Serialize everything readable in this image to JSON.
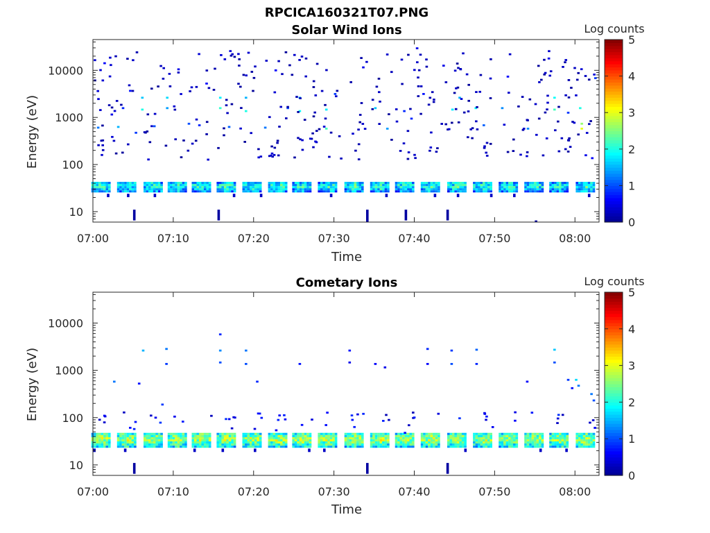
{
  "figure_title": "RPCICA160321T07.PNG",
  "colormap": [
    "#00008f",
    "#0000ff",
    "#0080ff",
    "#00ffff",
    "#80ff80",
    "#ffff00",
    "#ff8000",
    "#ff0000",
    "#800000"
  ],
  "chart_data": [
    {
      "type": "heatmap",
      "title": "Solar Wind Ions",
      "xlabel": "Time",
      "ylabel": "Energy (eV)",
      "x_tick_labels": [
        "07:00",
        "07:10",
        "07:20",
        "07:30",
        "07:40",
        "07:50",
        "08:00"
      ],
      "x_ticks_min": [
        0,
        10,
        20,
        30,
        40,
        50,
        60
      ],
      "xlim_min": [
        0,
        63
      ],
      "yscale": "log",
      "ylim": [
        6,
        45000
      ],
      "y_tick_labels": [
        "10",
        "100",
        "1000",
        "10000"
      ],
      "y_ticks": [
        10,
        100,
        1000,
        10000
      ],
      "colorbar": {
        "label": "Log counts",
        "range": [
          0,
          5
        ],
        "tick_labels": [
          "0",
          "1",
          "2",
          "3",
          "4",
          "5"
        ],
        "ticks": [
          0,
          1,
          2,
          3,
          4,
          5
        ]
      },
      "band": {
        "energy_low": 26,
        "energy_high": 42,
        "dominant_log_counts": 2.2
      },
      "sweep_times_min": [
        1,
        4.2,
        7.5,
        10.5,
        13.5,
        16.6,
        19.8,
        23,
        26,
        29.2,
        32.5,
        35.7,
        38.8,
        42,
        45.3,
        48.5,
        51.7,
        54.9,
        58,
        61.3
      ],
      "scatter_bins": [
        {
          "t": 0.5,
          "e": 580,
          "c": 1.2
        },
        {
          "t": 1.3,
          "e": 13500,
          "c": 0.6
        },
        {
          "t": 2.2,
          "e": 1100,
          "c": 0.5
        },
        {
          "t": 3.0,
          "e": 600,
          "c": 1.5
        },
        {
          "t": 3.6,
          "e": 1500,
          "c": 0.8
        },
        {
          "t": 4.5,
          "e": 3500,
          "c": 0.7
        },
        {
          "t": 5.2,
          "e": 450,
          "c": 0.9
        },
        {
          "t": 6.0,
          "e": 2500,
          "c": 1.6
        },
        {
          "t": 6.0,
          "e": 1400,
          "c": 2.0
        },
        {
          "t": 7.5,
          "e": 620,
          "c": 1.0
        },
        {
          "t": 9.1,
          "e": 2500,
          "c": 1.7
        },
        {
          "t": 9.1,
          "e": 1500,
          "c": 1.4
        },
        {
          "t": 10.5,
          "e": 10000,
          "c": 0.5
        },
        {
          "t": 11.8,
          "e": 700,
          "c": 1.0
        },
        {
          "t": 13.1,
          "e": 650,
          "c": 0.8
        },
        {
          "t": 14.0,
          "e": 5000,
          "c": 0.6
        },
        {
          "t": 15.7,
          "e": 2500,
          "c": 1.8
        },
        {
          "t": 15.7,
          "e": 1500,
          "c": 2.1
        },
        {
          "t": 16.8,
          "e": 600,
          "c": 1.1
        },
        {
          "t": 18.9,
          "e": 2500,
          "c": 1.5
        },
        {
          "t": 18.9,
          "e": 1300,
          "c": 2.0
        },
        {
          "t": 21.3,
          "e": 580,
          "c": 1.2
        },
        {
          "t": 22.6,
          "e": 9500,
          "c": 0.6
        },
        {
          "t": 24.1,
          "e": 1500,
          "c": 1.0
        },
        {
          "t": 25.6,
          "e": 1300,
          "c": 1.9
        },
        {
          "t": 25.6,
          "e": 2500,
          "c": 1.5
        },
        {
          "t": 28.9,
          "e": 1400,
          "c": 1.8
        },
        {
          "t": 28.9,
          "e": 550,
          "c": 2.2
        },
        {
          "t": 30.0,
          "e": 3000,
          "c": 0.9
        },
        {
          "t": 33.5,
          "e": 11000,
          "c": 0.5
        },
        {
          "t": 35.0,
          "e": 1500,
          "c": 1.6
        },
        {
          "t": 36.5,
          "e": 550,
          "c": 1.4
        },
        {
          "t": 38.6,
          "e": 1300,
          "c": 0.8
        },
        {
          "t": 39.5,
          "e": 900,
          "c": 0.8
        },
        {
          "t": 40.2,
          "e": 28000,
          "c": 0.5
        },
        {
          "t": 41.0,
          "e": 3000,
          "c": 0.7
        },
        {
          "t": 43.5,
          "e": 12000,
          "c": 0.5
        },
        {
          "t": 44.6,
          "e": 1400,
          "c": 1.8
        },
        {
          "t": 45.5,
          "e": 2500,
          "c": 1.5
        },
        {
          "t": 47.5,
          "e": 1500,
          "c": 1.9
        },
        {
          "t": 48.5,
          "e": 650,
          "c": 1.1
        },
        {
          "t": 50.8,
          "e": 1500,
          "c": 1.3
        },
        {
          "t": 51.5,
          "e": 7000,
          "c": 0.6
        },
        {
          "t": 54.0,
          "e": 550,
          "c": 1.3
        },
        {
          "t": 56.6,
          "e": 17000,
          "c": 0.5
        },
        {
          "t": 57.3,
          "e": 2500,
          "c": 1.9
        },
        {
          "t": 57.3,
          "e": 1400,
          "c": 2.2
        },
        {
          "t": 59.0,
          "e": 1200,
          "c": 0.9
        },
        {
          "t": 60.5,
          "e": 1500,
          "c": 2.0
        },
        {
          "t": 60.7,
          "e": 550,
          "c": 3.0
        },
        {
          "t": 60.7,
          "e": 700,
          "c": 2.6
        },
        {
          "t": 62.4,
          "e": 6500,
          "c": 0.9
        },
        {
          "t": 62.0,
          "e": 130,
          "c": 0.6
        },
        {
          "t": 61.2,
          "e": 150,
          "c": 0.5
        }
      ],
      "low_energy_spikes": [
        {
          "t": 5.0,
          "e_low": 6.5,
          "e_high": 11
        },
        {
          "t": 15.5,
          "e_low": 6.5,
          "e_high": 11
        },
        {
          "t": 34.0,
          "e_low": 6,
          "e_high": 11
        },
        {
          "t": 38.8,
          "e_low": 6.5,
          "e_high": 11
        },
        {
          "t": 44.0,
          "e_low": 6.5,
          "e_high": 11
        },
        {
          "t": 55.0,
          "e_low": 6,
          "e_high": 6.5
        }
      ]
    },
    {
      "type": "heatmap",
      "title": "Cometary Ions",
      "xlabel": "Time",
      "ylabel": "Energy (eV)",
      "x_tick_labels": [
        "07:00",
        "07:10",
        "07:20",
        "07:30",
        "07:40",
        "07:50",
        "08:00"
      ],
      "x_ticks_min": [
        0,
        10,
        20,
        30,
        40,
        50,
        60
      ],
      "xlim_min": [
        0,
        63
      ],
      "yscale": "log",
      "ylim": [
        6,
        45000
      ],
      "y_tick_labels": [
        "10",
        "100",
        "1000",
        "10000"
      ],
      "y_ticks": [
        10,
        100,
        1000,
        10000
      ],
      "colorbar": {
        "label": "Log counts",
        "range": [
          0,
          5
        ],
        "tick_labels": [
          "0",
          "1",
          "2",
          "3",
          "4",
          "5"
        ],
        "ticks": [
          0,
          1,
          2,
          3,
          4,
          5
        ]
      },
      "band": {
        "energy_low": 24,
        "energy_high": 45,
        "dominant_log_counts": 2.9
      },
      "sweep_times_min": [
        1,
        4.2,
        7.5,
        10.5,
        13.5,
        16.6,
        19.8,
        23,
        26,
        29.2,
        32.5,
        35.7,
        38.8,
        42,
        45.3,
        48.5,
        51.7,
        54.9,
        58,
        61.3
      ],
      "scatter_bins": [
        {
          "t": 2.5,
          "e": 550,
          "c": 1.2
        },
        {
          "t": 5.6,
          "e": 500,
          "c": 0.7
        },
        {
          "t": 6.1,
          "e": 2500,
          "c": 1.5
        },
        {
          "t": 9.0,
          "e": 2700,
          "c": 1.2
        },
        {
          "t": 9.0,
          "e": 1300,
          "c": 0.9
        },
        {
          "t": 8.5,
          "e": 180,
          "c": 0.9
        },
        {
          "t": 15.7,
          "e": 5500,
          "c": 0.8
        },
        {
          "t": 15.7,
          "e": 2500,
          "c": 1.3
        },
        {
          "t": 15.7,
          "e": 1400,
          "c": 1.0
        },
        {
          "t": 18.9,
          "e": 2500,
          "c": 1.2
        },
        {
          "t": 18.9,
          "e": 1300,
          "c": 1.0
        },
        {
          "t": 20.3,
          "e": 550,
          "c": 0.8
        },
        {
          "t": 25.6,
          "e": 1300,
          "c": 0.7
        },
        {
          "t": 31.8,
          "e": 2500,
          "c": 0.7
        },
        {
          "t": 31.8,
          "e": 1400,
          "c": 0.5
        },
        {
          "t": 35.0,
          "e": 1300,
          "c": 0.6
        },
        {
          "t": 36.2,
          "e": 1100,
          "c": 0.5
        },
        {
          "t": 41.5,
          "e": 2700,
          "c": 0.8
        },
        {
          "t": 41.5,
          "e": 1300,
          "c": 0.6
        },
        {
          "t": 44.5,
          "e": 2500,
          "c": 0.9
        },
        {
          "t": 44.5,
          "e": 1300,
          "c": 1.0
        },
        {
          "t": 47.6,
          "e": 2600,
          "c": 1.1
        },
        {
          "t": 47.6,
          "e": 1300,
          "c": 0.8
        },
        {
          "t": 53.9,
          "e": 550,
          "c": 0.6
        },
        {
          "t": 57.3,
          "e": 2600,
          "c": 1.6
        },
        {
          "t": 57.3,
          "e": 1400,
          "c": 1.0
        },
        {
          "t": 60.0,
          "e": 600,
          "c": 1.7
        },
        {
          "t": 59.0,
          "e": 600,
          "c": 0.9
        },
        {
          "t": 60.3,
          "e": 450,
          "c": 1.2
        },
        {
          "t": 61.9,
          "e": 300,
          "c": 1.2
        },
        {
          "t": 62.2,
          "e": 220,
          "c": 1.0
        },
        {
          "t": 59.5,
          "e": 400,
          "c": 0.7
        }
      ],
      "low_energy_spikes": [
        {
          "t": 5.0,
          "e_low": 6.5,
          "e_high": 11
        },
        {
          "t": 34.0,
          "e_low": 6.5,
          "e_high": 11
        },
        {
          "t": 44.0,
          "e_low": 6.5,
          "e_high": 11
        }
      ]
    }
  ]
}
